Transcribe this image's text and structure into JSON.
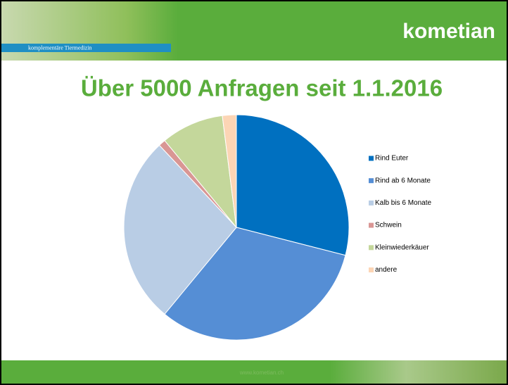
{
  "header": {
    "logo": "kometian",
    "tagline": "komplementäre Tiermedizin"
  },
  "chart_data": {
    "type": "pie",
    "title": "Über 5000 Anfragen seit 1.1.2016",
    "categories": [
      "Rind Euter",
      "Rind ab 6 Monate",
      "Kalb bis 6 Monate",
      "Schwein",
      "Kleinwiederkäuer",
      "andere"
    ],
    "values": [
      29,
      32,
      27,
      1,
      9,
      2
    ],
    "colors": [
      "#0070c0",
      "#558ed5",
      "#b9cde5",
      "#d99694",
      "#c4d79b",
      "#fcd5b5"
    ],
    "legend": "right"
  },
  "footer": {
    "url": "www.kometian.ch"
  }
}
